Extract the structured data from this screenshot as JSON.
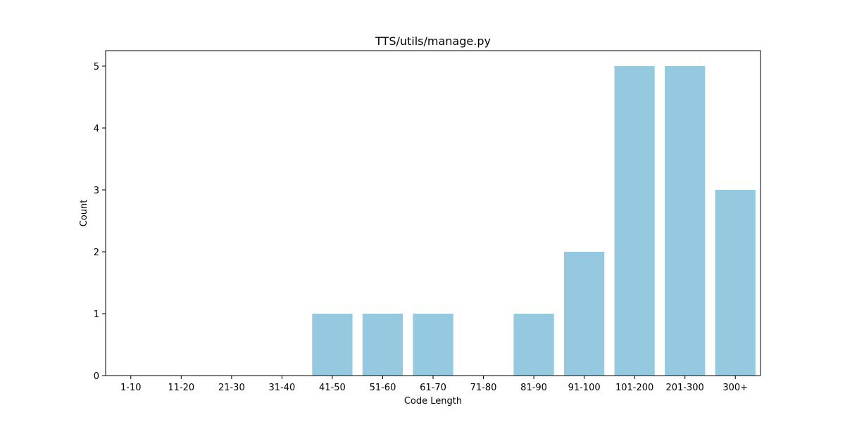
{
  "chart_data": {
    "type": "bar",
    "title": "TTS/utils/manage.py",
    "xlabel": "Code Length",
    "ylabel": "Count",
    "categories": [
      "1-10",
      "11-20",
      "21-30",
      "31-40",
      "41-50",
      "51-60",
      "61-70",
      "71-80",
      "81-90",
      "91-100",
      "101-200",
      "201-300",
      "300+"
    ],
    "values": [
      0,
      0,
      0,
      0,
      1,
      1,
      1,
      0,
      1,
      2,
      5,
      5,
      3
    ],
    "ylim": [
      0,
      5.25
    ],
    "yticks": [
      0,
      1,
      2,
      3,
      4,
      5
    ],
    "grid": false,
    "bar_color": "#95c9df"
  }
}
